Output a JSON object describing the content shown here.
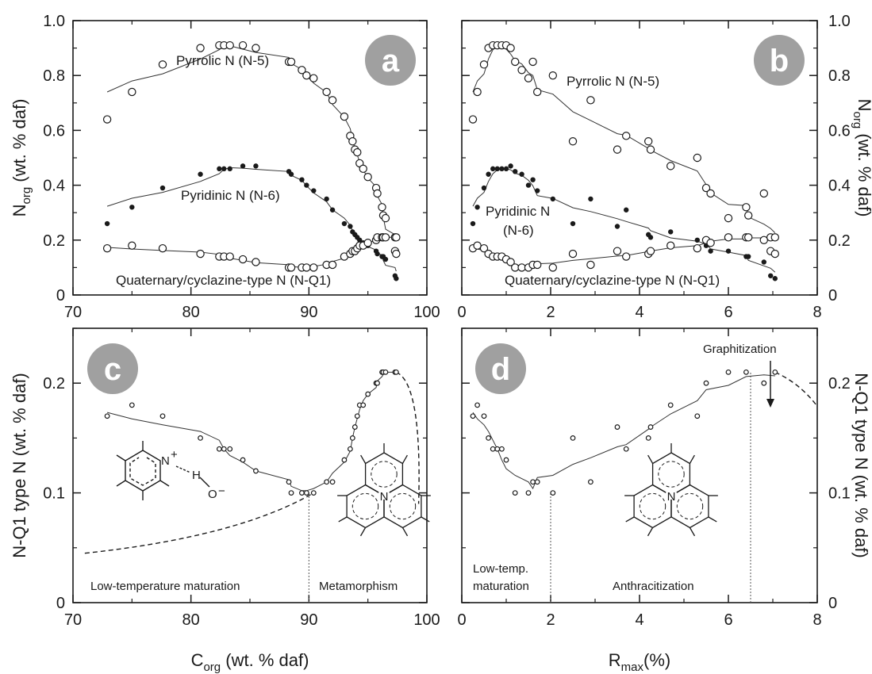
{
  "axis_labels": {
    "norg_main": "N",
    "norg_sub": "org",
    "norg_rest": " (wt. % daf)",
    "nq1": "N-Q1 type N  (wt. % daf)",
    "corg_main": "C",
    "corg_sub": "org",
    "corg_rest": " (wt. % daf)",
    "rmax_main": "R",
    "rmax_sub": "max",
    "rmax_rest": "(%)"
  },
  "badges": {
    "a": "a",
    "b": "b",
    "c": "c",
    "d": "d"
  },
  "structure_labels": {
    "n_plus": "N",
    "plus": "+",
    "h": "H",
    "o_minus": "O",
    "minus": "−",
    "n_center": "N"
  },
  "chart_data": [
    {
      "id": "a",
      "type": "scatter",
      "xlim": [
        70,
        100
      ],
      "ylim": [
        0,
        1.0
      ],
      "xticks": [
        "70",
        "80",
        "90",
        "100"
      ],
      "yticks": [
        "0",
        "0.2",
        "0.4",
        "0.6",
        "0.8",
        "1.0"
      ],
      "annotations": [
        "Pyrrolic N (N-5)",
        "Pyridinic N (N-6)",
        "Quaternary/cyclazine-type N (N-Q1)"
      ],
      "series": [
        {
          "name": "Pyrrolic N (N-5)",
          "marker": "open",
          "x": [
            72.9,
            75.0,
            77.6,
            80.8,
            82.4,
            82.8,
            83.3,
            84.4,
            85.5,
            88.3,
            88.5,
            89.4,
            89.8,
            90.4,
            91.5,
            92.0,
            93.0,
            93.5,
            93.7,
            93.9,
            94.1,
            94.3,
            94.6,
            95.0,
            95.7,
            95.8,
            96.2,
            96.3,
            96.5,
            97.3,
            97.4
          ],
          "y": [
            0.64,
            0.74,
            0.84,
            0.9,
            0.91,
            0.91,
            0.91,
            0.91,
            0.9,
            0.85,
            0.85,
            0.82,
            0.8,
            0.79,
            0.74,
            0.71,
            0.65,
            0.58,
            0.56,
            0.53,
            0.52,
            0.48,
            0.46,
            0.43,
            0.39,
            0.37,
            0.32,
            0.29,
            0.28,
            0.16,
            0.15
          ]
        },
        {
          "name": "Pyridinic N (N-6)",
          "marker": "filled",
          "x": [
            72.9,
            75.0,
            77.6,
            80.8,
            82.4,
            82.8,
            83.3,
            84.4,
            85.5,
            88.3,
            88.5,
            89.4,
            89.8,
            90.4,
            91.5,
            92.0,
            93.0,
            93.5,
            93.7,
            93.9,
            94.1,
            94.3,
            94.6,
            95.0,
            95.7,
            95.8,
            96.2,
            96.3,
            96.5,
            97.3,
            97.4
          ],
          "y": [
            0.26,
            0.32,
            0.39,
            0.44,
            0.46,
            0.46,
            0.46,
            0.47,
            0.47,
            0.45,
            0.44,
            0.42,
            0.4,
            0.38,
            0.35,
            0.31,
            0.26,
            0.25,
            0.23,
            0.22,
            0.21,
            0.2,
            0.19,
            0.18,
            0.16,
            0.15,
            0.14,
            0.14,
            0.13,
            0.07,
            0.06
          ]
        },
        {
          "name": "Quaternary/cyclazine-type N (N-Q1)",
          "marker": "open",
          "x": [
            72.9,
            75.0,
            77.6,
            80.8,
            82.4,
            82.8,
            83.3,
            84.4,
            85.5,
            88.3,
            88.5,
            89.4,
            89.8,
            90.4,
            91.5,
            92.0,
            93.0,
            93.5,
            93.7,
            93.9,
            94.1,
            94.3,
            94.6,
            95.0,
            95.7,
            95.8,
            96.2,
            96.3,
            96.5,
            97.3,
            97.4
          ],
          "y": [
            0.17,
            0.18,
            0.17,
            0.15,
            0.14,
            0.14,
            0.14,
            0.13,
            0.12,
            0.1,
            0.1,
            0.1,
            0.1,
            0.1,
            0.11,
            0.11,
            0.14,
            0.15,
            0.16,
            0.16,
            0.17,
            0.18,
            0.18,
            0.19,
            0.2,
            0.21,
            0.21,
            0.21,
            0.21,
            0.21,
            0.21
          ]
        }
      ]
    },
    {
      "id": "b",
      "type": "scatter",
      "xlim": [
        0,
        8
      ],
      "ylim": [
        0,
        1.0
      ],
      "xticks": [
        "0",
        "2",
        "4",
        "6",
        "8"
      ],
      "yticks": [
        "0",
        "0.2",
        "0.4",
        "0.6",
        "0.8",
        "1.0"
      ],
      "annotations": [
        "Pyrrolic N (N-5)",
        "Pyridinic N",
        "(N-6)",
        "Quaternary/cyclazine-type N (N-Q1)"
      ],
      "series": [
        {
          "name": "Pyrrolic N (N-5)",
          "marker": "open",
          "x": [
            0.25,
            0.35,
            0.5,
            0.6,
            0.7,
            0.8,
            0.9,
            1.0,
            1.1,
            1.2,
            1.35,
            1.5,
            1.6,
            1.7,
            2.05,
            2.5,
            2.9,
            3.5,
            3.7,
            4.2,
            4.25,
            4.7,
            5.3,
            5.5,
            5.6,
            6.0,
            6.4,
            6.45,
            6.8,
            6.95,
            7.05
          ],
          "y": [
            0.64,
            0.74,
            0.84,
            0.9,
            0.91,
            0.91,
            0.91,
            0.91,
            0.9,
            0.85,
            0.82,
            0.79,
            0.85,
            0.74,
            0.8,
            0.56,
            0.71,
            0.53,
            0.58,
            0.56,
            0.53,
            0.47,
            0.5,
            0.39,
            0.37,
            0.28,
            0.32,
            0.29,
            0.37,
            0.16,
            0.15
          ]
        },
        {
          "name": "Pyridinic N (N-6)",
          "marker": "filled",
          "x": [
            0.25,
            0.35,
            0.5,
            0.6,
            0.7,
            0.8,
            0.9,
            1.0,
            1.1,
            1.2,
            1.35,
            1.5,
            1.6,
            1.7,
            2.05,
            2.5,
            2.9,
            3.5,
            3.7,
            4.2,
            4.25,
            4.7,
            5.3,
            5.5,
            5.6,
            6.0,
            6.4,
            6.45,
            6.8,
            6.95,
            7.05
          ],
          "y": [
            0.26,
            0.32,
            0.39,
            0.44,
            0.46,
            0.46,
            0.46,
            0.46,
            0.47,
            0.45,
            0.44,
            0.4,
            0.42,
            0.38,
            0.35,
            0.26,
            0.35,
            0.25,
            0.31,
            0.22,
            0.21,
            0.23,
            0.2,
            0.18,
            0.16,
            0.16,
            0.14,
            0.14,
            0.12,
            0.07,
            0.06
          ]
        },
        {
          "name": "Quaternary/cyclazine-type N (N-Q1)",
          "marker": "open",
          "x": [
            0.25,
            0.35,
            0.5,
            0.6,
            0.7,
            0.8,
            0.9,
            1.0,
            1.1,
            1.2,
            1.35,
            1.5,
            1.6,
            1.7,
            2.05,
            2.5,
            2.9,
            3.5,
            3.7,
            4.2,
            4.25,
            4.7,
            5.3,
            5.5,
            5.6,
            6.0,
            6.4,
            6.45,
            6.8,
            6.95,
            7.05
          ],
          "y": [
            0.17,
            0.18,
            0.17,
            0.15,
            0.14,
            0.14,
            0.14,
            0.13,
            0.12,
            0.1,
            0.1,
            0.1,
            0.11,
            0.11,
            0.1,
            0.15,
            0.11,
            0.16,
            0.14,
            0.15,
            0.16,
            0.18,
            0.17,
            0.2,
            0.19,
            0.21,
            0.21,
            0.21,
            0.2,
            0.21,
            0.21
          ]
        }
      ]
    },
    {
      "id": "c",
      "type": "scatter",
      "xlim": [
        70,
        100
      ],
      "ylim": [
        0,
        0.25
      ],
      "xticks": [
        "70",
        "80",
        "90",
        "100"
      ],
      "yticks": [
        "0",
        "0.1",
        "0.2"
      ],
      "annotations": [
        "Low-temperature maturation",
        "Metamorphism"
      ],
      "series": [
        {
          "name": "N-Q1",
          "marker": "open",
          "x": [
            72.9,
            75.0,
            77.6,
            80.8,
            82.4,
            82.8,
            83.3,
            84.4,
            85.5,
            88.3,
            88.5,
            89.4,
            89.8,
            90.4,
            91.5,
            92.0,
            93.0,
            93.5,
            93.7,
            93.9,
            94.1,
            94.3,
            94.6,
            95.0,
            95.7,
            95.8,
            96.2,
            96.3,
            96.5,
            97.3,
            97.4
          ],
          "y": [
            0.17,
            0.18,
            0.17,
            0.15,
            0.14,
            0.14,
            0.14,
            0.13,
            0.12,
            0.11,
            0.1,
            0.1,
            0.1,
            0.1,
            0.11,
            0.11,
            0.13,
            0.14,
            0.15,
            0.16,
            0.17,
            0.18,
            0.18,
            0.19,
            0.2,
            0.2,
            0.21,
            0.21,
            0.21,
            0.21,
            0.21
          ]
        }
      ],
      "vlines": [
        90
      ]
    },
    {
      "id": "d",
      "type": "scatter",
      "xlim": [
        0,
        8
      ],
      "ylim": [
        0,
        0.25
      ],
      "xticks": [
        "0",
        "2",
        "4",
        "6",
        "8"
      ],
      "yticks": [
        "0",
        "0.1",
        "0.2"
      ],
      "annotations": [
        "Low-temp.",
        "maturation",
        "Anthracitization",
        "Graphitization"
      ],
      "series": [
        {
          "name": "N-Q1",
          "marker": "open",
          "x": [
            0.25,
            0.35,
            0.5,
            0.6,
            0.7,
            0.8,
            0.9,
            1.0,
            1.2,
            1.5,
            1.6,
            1.7,
            2.05,
            2.5,
            2.9,
            3.5,
            3.7,
            4.2,
            4.25,
            4.7,
            5.3,
            5.5,
            6.0,
            6.4,
            6.8,
            7.05
          ],
          "y": [
            0.17,
            0.18,
            0.17,
            0.15,
            0.14,
            0.14,
            0.14,
            0.13,
            0.1,
            0.1,
            0.11,
            0.11,
            0.1,
            0.15,
            0.11,
            0.16,
            0.14,
            0.15,
            0.16,
            0.18,
            0.17,
            0.2,
            0.21,
            0.21,
            0.2,
            0.21
          ]
        }
      ],
      "vlines": [
        2,
        6.5
      ]
    }
  ]
}
